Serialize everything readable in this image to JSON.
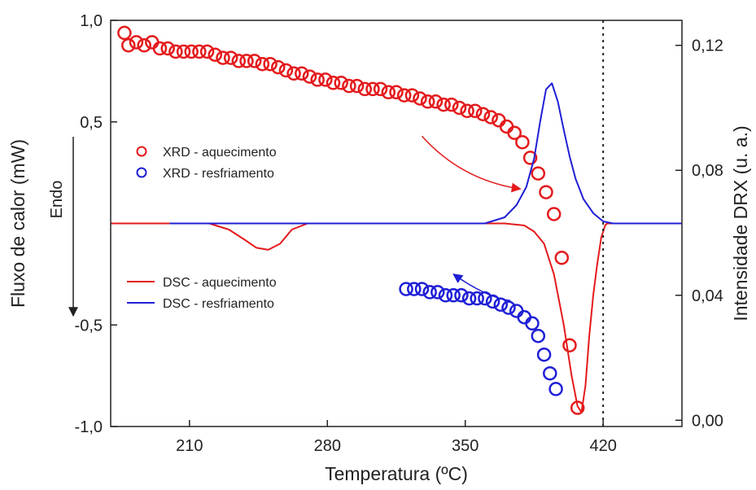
{
  "chart_data": {
    "type": "scatter",
    "xlabel": "Temperatura (ºC)",
    "ylabel_left": "Fluxo de calor (mW)",
    "ylabel_right": "Intensidade DRX (u. a.)",
    "endo_label": "Endo",
    "xlim": [
      170,
      460
    ],
    "ylim_left": [
      -1.0,
      1.0
    ],
    "ylim_right": [
      -0.002,
      0.128
    ],
    "x_ticks": [
      210,
      280,
      350,
      420
    ],
    "x_tick_labels": [
      "210",
      "280",
      "350",
      "420"
    ],
    "y_left_ticks": [
      1.0,
      0.5,
      -0.5,
      -1.0
    ],
    "y_left_tick_labels": [
      "1,0",
      "0,5",
      "-0,5",
      "-1,0"
    ],
    "y_right_ticks": [
      0.12,
      0.08,
      0.04,
      0.0
    ],
    "y_right_tick_labels": [
      "0,12",
      "0,08",
      "0,04",
      "0,00"
    ],
    "vline_x": 420,
    "grid": false,
    "colors": {
      "red": "#e41a1c",
      "blue": "#1f1fd6"
    },
    "legends": [
      {
        "position": "upper-left",
        "entries": [
          {
            "label": "XRD - aquecimento",
            "marker": "circle",
            "color": "#e41a1c"
          },
          {
            "label": "XRD - resfriamento",
            "marker": "circle",
            "color": "#1f1fd6"
          }
        ]
      },
      {
        "position": "lower-left",
        "entries": [
          {
            "label": "DSC - aquecimento",
            "marker": "line",
            "color": "#e41a1c"
          },
          {
            "label": "DSC - resfriamento",
            "marker": "line",
            "color": "#1f1fd6"
          }
        ]
      }
    ],
    "series": [
      {
        "name": "XRD - aquecimento",
        "type": "scatter",
        "axis": "right",
        "color": "#e41a1c",
        "x": [
          177,
          179,
          183,
          187,
          191,
          195,
          199,
          203,
          207,
          211,
          215,
          219,
          223,
          227,
          231,
          235,
          239,
          243,
          247,
          251,
          255,
          259,
          263,
          267,
          271,
          275,
          279,
          283,
          287,
          291,
          295,
          299,
          303,
          307,
          311,
          315,
          319,
          323,
          327,
          331,
          335,
          339,
          343,
          347,
          351,
          355,
          359,
          363,
          367,
          371,
          375,
          379,
          383,
          387,
          391,
          395,
          399,
          403,
          407
        ],
        "y": [
          0.124,
          0.12,
          0.121,
          0.12,
          0.121,
          0.119,
          0.119,
          0.118,
          0.118,
          0.118,
          0.118,
          0.118,
          0.117,
          0.116,
          0.116,
          0.115,
          0.115,
          0.115,
          0.114,
          0.114,
          0.113,
          0.112,
          0.111,
          0.111,
          0.11,
          0.109,
          0.109,
          0.108,
          0.108,
          0.107,
          0.107,
          0.106,
          0.106,
          0.106,
          0.105,
          0.105,
          0.104,
          0.104,
          0.103,
          0.102,
          0.102,
          0.101,
          0.101,
          0.1,
          0.099,
          0.099,
          0.098,
          0.097,
          0.096,
          0.094,
          0.092,
          0.089,
          0.084,
          0.079,
          0.073,
          0.066,
          0.052,
          0.024,
          0.004
        ]
      },
      {
        "name": "XRD - resfriamento",
        "type": "scatter",
        "axis": "right",
        "color": "#1f1fd6",
        "x": [
          320,
          324,
          328,
          332,
          336,
          340,
          344,
          348,
          352,
          356,
          360,
          364,
          368,
          372,
          376,
          380,
          384,
          387,
          390,
          393,
          396
        ],
        "y": [
          0.042,
          0.042,
          0.042,
          0.041,
          0.041,
          0.04,
          0.04,
          0.04,
          0.039,
          0.039,
          0.039,
          0.038,
          0.037,
          0.036,
          0.035,
          0.033,
          0.031,
          0.027,
          0.021,
          0.015,
          0.01
        ]
      },
      {
        "name": "DSC - aquecimento",
        "type": "line",
        "axis": "left",
        "color": "#e41a1c",
        "x": [
          170,
          185,
          200,
          220,
          230,
          238,
          244,
          250,
          256,
          262,
          270,
          290,
          310,
          330,
          350,
          360,
          370,
          380,
          385,
          390,
          395,
          400,
          404,
          407,
          409,
          411,
          413,
          415,
          417,
          419,
          421,
          422,
          425,
          440,
          460
        ],
        "y": [
          0.0,
          0.0,
          0.0,
          0.0,
          -0.03,
          -0.08,
          -0.12,
          -0.13,
          -0.1,
          -0.03,
          0.0,
          0.0,
          0.0,
          0.0,
          0.0,
          0.0,
          0.0,
          -0.01,
          -0.04,
          -0.1,
          -0.25,
          -0.5,
          -0.75,
          -0.9,
          -0.93,
          -0.8,
          -0.55,
          -0.35,
          -0.2,
          -0.07,
          -0.01,
          0.0,
          0.0,
          0.0,
          0.0
        ]
      },
      {
        "name": "DSC - resfriamento",
        "type": "line",
        "axis": "left",
        "color": "#1f1fd6",
        "x": [
          200,
          220,
          240,
          260,
          280,
          300,
          320,
          340,
          360,
          370,
          376,
          381,
          385,
          388,
          391,
          394,
          397,
          400,
          403,
          406,
          410,
          415,
          420,
          425,
          440,
          460
        ],
        "y": [
          0.0,
          0.0,
          0.0,
          0.0,
          0.0,
          0.0,
          0.0,
          0.0,
          0.0,
          0.03,
          0.09,
          0.18,
          0.32,
          0.5,
          0.66,
          0.69,
          0.6,
          0.46,
          0.33,
          0.22,
          0.12,
          0.05,
          0.01,
          0.0,
          0.0,
          0.0
        ]
      }
    ],
    "annotations": [
      {
        "type": "arrow",
        "color": "#e41a1c",
        "x": [
          328,
          378
        ],
        "y_left": [
          0.43,
          0.17
        ]
      },
      {
        "type": "arrow",
        "color": "#1f1fd6",
        "x": [
          373,
          344
        ],
        "y_left": [
          -0.38,
          -0.25
        ]
      },
      {
        "type": "arrow",
        "color": "#222222",
        "label": "Endo",
        "direction": "down"
      }
    ]
  }
}
